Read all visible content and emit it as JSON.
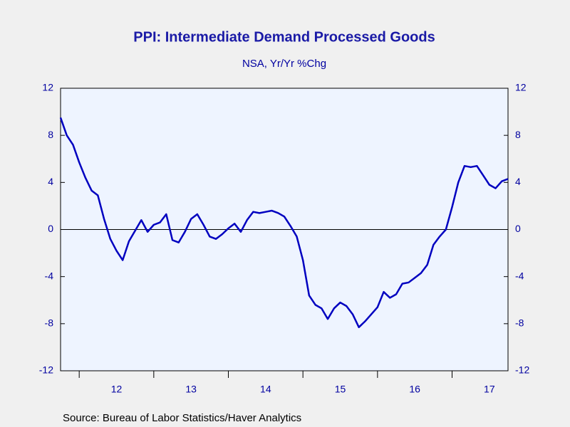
{
  "chart_data": {
    "type": "line",
    "title": "PPI: Intermediate Demand Processed Goods",
    "subtitle": "NSA, Yr/Yr %Chg",
    "source": "Source:  Bureau of Labor Statistics/Haver Analytics",
    "xlim": [
      2011.75,
      2017.75
    ],
    "xticks": [
      {
        "value": 2012.5,
        "label": "12"
      },
      {
        "value": 2013.5,
        "label": "13"
      },
      {
        "value": 2014.5,
        "label": "14"
      },
      {
        "value": 2015.5,
        "label": "15"
      },
      {
        "value": 2016.5,
        "label": "16"
      },
      {
        "value": 2017.5,
        "label": "17"
      }
    ],
    "x_boundaries": [
      2012,
      2013,
      2014,
      2015,
      2016,
      2017
    ],
    "ylim": [
      -12,
      12
    ],
    "yticks": [
      -12,
      -8,
      -4,
      0,
      4,
      8,
      12
    ],
    "x": [
      2011.75,
      2011.833,
      2011.917,
      2012,
      2012.083,
      2012.167,
      2012.25,
      2012.333,
      2012.417,
      2012.5,
      2012.583,
      2012.667,
      2012.75,
      2012.833,
      2012.917,
      2013,
      2013.083,
      2013.167,
      2013.25,
      2013.333,
      2013.417,
      2013.5,
      2013.583,
      2013.667,
      2013.75,
      2013.833,
      2013.917,
      2014,
      2014.083,
      2014.167,
      2014.25,
      2014.333,
      2014.417,
      2014.5,
      2014.583,
      2014.667,
      2014.75,
      2014.833,
      2014.917,
      2015,
      2015.083,
      2015.167,
      2015.25,
      2015.333,
      2015.417,
      2015.5,
      2015.583,
      2015.667,
      2015.75,
      2015.833,
      2015.917,
      2016,
      2016.083,
      2016.167,
      2016.25,
      2016.333,
      2016.417,
      2016.5,
      2016.583,
      2016.667,
      2016.75,
      2016.833,
      2016.917,
      2017,
      2017.083,
      2017.167,
      2017.25,
      2017.333,
      2017.417,
      2017.5,
      2017.583,
      2017.667,
      2017.75
    ],
    "series": [
      {
        "color": "#0000c0",
        "values": [
          9.5,
          8.0,
          7.2,
          5.7,
          4.4,
          3.3,
          2.9,
          0.9,
          -0.8,
          -1.8,
          -2.6,
          -1.0,
          -0.1,
          0.8,
          -0.2,
          0.4,
          0.6,
          1.3,
          -0.9,
          -1.1,
          -0.2,
          0.9,
          1.3,
          0.4,
          -0.6,
          -0.8,
          -0.4,
          0.1,
          0.5,
          -0.2,
          0.8,
          1.5,
          1.4,
          1.5,
          1.6,
          1.4,
          1.1,
          0.3,
          -0.6,
          -2.6,
          -5.6,
          -6.4,
          -6.7,
          -7.6,
          -6.7,
          -6.2,
          -6.5,
          -7.2,
          -8.3,
          -7.8,
          -7.2,
          -6.6,
          -5.3,
          -5.8,
          -5.5,
          -4.6,
          -4.5,
          -4.1,
          -3.7,
          -3.0,
          -1.3,
          -0.6,
          0.0,
          1.9,
          4.0,
          5.4,
          5.3,
          5.4,
          4.6,
          3.8,
          3.5,
          4.1,
          4.3
        ]
      }
    ]
  }
}
